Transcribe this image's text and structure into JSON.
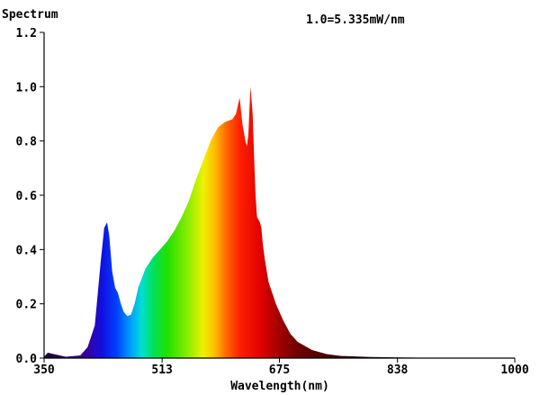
{
  "chart_data": {
    "type": "area",
    "ylabel": "Spectrum",
    "xlabel": "Wavelength(nm)",
    "annotation": "1.0=5.335mW/nm",
    "xlim": [
      350,
      1000
    ],
    "ylim": [
      0,
      1.2
    ],
    "x_ticks": [
      {
        "value": 350,
        "label": "350"
      },
      {
        "value": 513,
        "label": "513"
      },
      {
        "value": 675,
        "label": "675"
      },
      {
        "value": 838,
        "label": "838"
      },
      {
        "value": 1000,
        "label": "1000"
      }
    ],
    "y_ticks": [
      {
        "value": 0.0,
        "label": "0.0"
      },
      {
        "value": 0.2,
        "label": "0.2"
      },
      {
        "value": 0.4,
        "label": "0.4"
      },
      {
        "value": 0.6,
        "label": "0.6"
      },
      {
        "value": 0.8,
        "label": "0.8"
      },
      {
        "value": 1.0,
        "label": "1.0"
      },
      {
        "value": 1.2,
        "label": "1.2"
      }
    ],
    "grid": false,
    "fill": "wavelength-colored spectrum",
    "series": [
      {
        "x": [
          350,
          355,
          380,
          400,
          410,
          420,
          428,
          433,
          437,
          440,
          444,
          448,
          452,
          456,
          460,
          465,
          470,
          475,
          480,
          490,
          500,
          510,
          520,
          530,
          540,
          550,
          560,
          570,
          580,
          590,
          600,
          610,
          615,
          620,
          624,
          626,
          628,
          630,
          632,
          635,
          638,
          640,
          642,
          644,
          648,
          650,
          652,
          655,
          660,
          670,
          680,
          690,
          700,
          720,
          740,
          760,
          800,
          850,
          900,
          950,
          1000
        ],
        "y": [
          0.005,
          0.02,
          0.005,
          0.01,
          0.04,
          0.12,
          0.35,
          0.48,
          0.5,
          0.45,
          0.32,
          0.26,
          0.24,
          0.2,
          0.17,
          0.155,
          0.16,
          0.2,
          0.26,
          0.33,
          0.37,
          0.4,
          0.43,
          0.47,
          0.52,
          0.58,
          0.66,
          0.73,
          0.8,
          0.85,
          0.87,
          0.88,
          0.9,
          0.96,
          0.86,
          0.83,
          0.8,
          0.78,
          0.82,
          1.0,
          0.9,
          0.74,
          0.6,
          0.52,
          0.5,
          0.48,
          0.42,
          0.36,
          0.28,
          0.2,
          0.14,
          0.09,
          0.06,
          0.03,
          0.015,
          0.008,
          0.004,
          0.002,
          0.001,
          0.001,
          0.001
        ]
      }
    ]
  }
}
